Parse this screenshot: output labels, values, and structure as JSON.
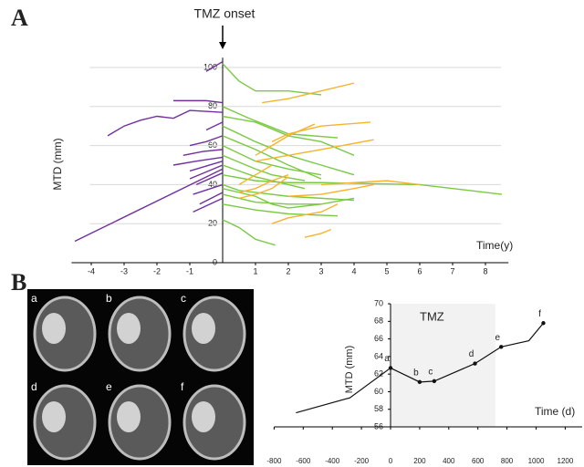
{
  "chart_data": [
    {
      "type": "line",
      "panel_label": "A",
      "annotation": "TMZ onset",
      "y_label": "MTD (mm)",
      "x_label": "Time(y)",
      "xlim": [
        -4.6,
        8.7
      ],
      "ylim": [
        0,
        105
      ],
      "xticks": [
        -4,
        -3,
        -2,
        -1,
        1,
        2,
        3,
        4,
        5,
        6,
        7,
        8
      ],
      "yticks": [
        0,
        20,
        40,
        60,
        80,
        100
      ],
      "grid": true,
      "series": [
        {
          "color": "#7030a0",
          "x": [
            -4.5,
            0
          ],
          "values": [
            11,
            48
          ]
        },
        {
          "color": "#7030a0",
          "x": [
            -3.5,
            -3,
            -2.5,
            -2,
            -1.5,
            -1,
            0
          ],
          "values": [
            65,
            70,
            73,
            75,
            74,
            78,
            77
          ]
        },
        {
          "color": "#7030a0",
          "x": [
            -1.5,
            -0.5,
            0
          ],
          "values": [
            83,
            83,
            82
          ]
        },
        {
          "color": "#7030a0",
          "x": [
            -0.5,
            0
          ],
          "values": [
            98,
            103
          ]
        },
        {
          "color": "#7030a0",
          "x": [
            -1,
            -0.5,
            0
          ],
          "values": [
            60,
            62,
            65
          ]
        },
        {
          "color": "#7030a0",
          "x": [
            -1.2,
            -0.6,
            0
          ],
          "values": [
            55,
            57,
            58
          ]
        },
        {
          "color": "#7030a0",
          "x": [
            -1,
            0
          ],
          "values": [
            47,
            52
          ]
        },
        {
          "color": "#7030a0",
          "x": [
            -0.8,
            0
          ],
          "values": [
            40,
            46
          ]
        },
        {
          "color": "#7030a0",
          "x": [
            -1,
            0
          ],
          "values": [
            43,
            50
          ]
        },
        {
          "color": "#7030a0",
          "x": [
            -0.9,
            0
          ],
          "values": [
            35,
            40
          ]
        },
        {
          "color": "#7030a0",
          "x": [
            -0.7,
            0
          ],
          "values": [
            30,
            36
          ]
        },
        {
          "color": "#7030a0",
          "x": [
            -0.9,
            0
          ],
          "values": [
            26,
            33
          ]
        },
        {
          "color": "#7030a0",
          "x": [
            -0.5,
            0
          ],
          "values": [
            68,
            72
          ]
        },
        {
          "color": "#7030a0",
          "x": [
            -1.5,
            -0.8,
            0
          ],
          "values": [
            50,
            52,
            54
          ]
        },
        {
          "color": "#7ac943",
          "x": [
            0,
            0.5,
            1,
            2,
            3
          ],
          "values": [
            102,
            93,
            88,
            88,
            86
          ]
        },
        {
          "color": "#7ac943",
          "x": [
            0,
            1,
            2,
            3,
            4
          ],
          "values": [
            75,
            72,
            65,
            62,
            55
          ]
        },
        {
          "color": "#7ac943",
          "x": [
            0,
            0.8,
            2,
            3.5
          ],
          "values": [
            80,
            74,
            66,
            64
          ]
        },
        {
          "color": "#7ac943",
          "x": [
            0,
            1,
            2,
            3,
            4
          ],
          "values": [
            70,
            62,
            55,
            50,
            45
          ]
        },
        {
          "color": "#7ac943",
          "x": [
            0,
            1,
            2,
            3,
            6,
            8.5
          ],
          "values": [
            45,
            42,
            41,
            41,
            40,
            35
          ]
        },
        {
          "color": "#7ac943",
          "x": [
            0,
            1,
            2,
            3
          ],
          "values": [
            60,
            52,
            48,
            45
          ]
        },
        {
          "color": "#7ac943",
          "x": [
            0,
            1,
            1.5,
            2.5
          ],
          "values": [
            55,
            48,
            45,
            42
          ]
        },
        {
          "color": "#7ac943",
          "x": [
            0,
            0.5,
            1,
            2,
            3,
            4
          ],
          "values": [
            40,
            37,
            36,
            34,
            33,
            32
          ]
        },
        {
          "color": "#7ac943",
          "x": [
            0,
            1,
            2,
            3
          ],
          "values": [
            35,
            31,
            30,
            30
          ]
        },
        {
          "color": "#7ac943",
          "x": [
            0,
            1,
            2,
            3.5
          ],
          "values": [
            30,
            27,
            25,
            24
          ]
        },
        {
          "color": "#7ac943",
          "x": [
            0,
            0.5,
            1,
            1.6
          ],
          "values": [
            22,
            18,
            12,
            9
          ]
        },
        {
          "color": "#7ac943",
          "x": [
            0,
            1,
            2,
            3
          ],
          "values": [
            65,
            58,
            50,
            43
          ]
        },
        {
          "color": "#7ac943",
          "x": [
            0,
            1,
            2,
            2.5
          ],
          "values": [
            50,
            44,
            40,
            38
          ]
        },
        {
          "color": "#7ac943",
          "x": [
            0,
            1,
            1.5,
            2,
            3,
            4
          ],
          "values": [
            38,
            34,
            30,
            28,
            30,
            33
          ]
        },
        {
          "color": "#f7b32b",
          "x": [
            1.2,
            2,
            3,
            4
          ],
          "values": [
            82,
            84,
            88,
            92
          ]
        },
        {
          "color": "#f7b32b",
          "x": [
            0.5,
            1,
            1.5,
            2
          ],
          "values": [
            33,
            35,
            38,
            44
          ]
        },
        {
          "color": "#f7b32b",
          "x": [
            1,
            2,
            3,
            4.6
          ],
          "values": [
            52,
            55,
            58,
            63
          ]
        },
        {
          "color": "#f7b32b",
          "x": [
            1.5,
            2,
            3,
            4.5
          ],
          "values": [
            62,
            66,
            70,
            72
          ]
        },
        {
          "color": "#f7b32b",
          "x": [
            2,
            3,
            4,
            4.6
          ],
          "values": [
            34,
            35,
            38,
            40
          ]
        },
        {
          "color": "#f7b32b",
          "x": [
            1.5,
            2,
            3,
            3.5
          ],
          "values": [
            20,
            23,
            26,
            30
          ]
        },
        {
          "color": "#f7b32b",
          "x": [
            2.5,
            3,
            3.3
          ],
          "values": [
            13,
            15,
            17
          ]
        },
        {
          "color": "#f7b32b",
          "x": [
            0.5,
            1,
            1.5,
            2
          ],
          "values": [
            36,
            38,
            42,
            45
          ]
        },
        {
          "color": "#f7b32b",
          "x": [
            3,
            4,
            5,
            6
          ],
          "values": [
            40,
            41,
            42,
            40
          ]
        },
        {
          "color": "#f7b32b",
          "x": [
            1,
            1.5,
            2,
            2.8
          ],
          "values": [
            55,
            60,
            65,
            71
          ]
        },
        {
          "color": "#f7b32b",
          "x": [
            0.5,
            1,
            1.5
          ],
          "values": [
            40,
            45,
            50
          ]
        }
      ]
    },
    {
      "type": "line",
      "annotation": "TMZ",
      "y_label": "MTD (mm)",
      "x_label": "Time (d)",
      "xlim": [
        -800,
        1200
      ],
      "ylim": [
        56,
        70
      ],
      "xticks": [
        -800,
        -600,
        -400,
        -200,
        0,
        200,
        400,
        600,
        800,
        1000,
        1200
      ],
      "yticks": [
        56,
        58,
        60,
        62,
        64,
        66,
        68,
        70
      ],
      "shade": {
        "xlim": [
          0,
          720
        ],
        "color": "#f2f2f2"
      },
      "color": "#111111",
      "x": [
        -650,
        -280,
        0,
        200,
        300,
        580,
        760,
        950,
        1050
      ],
      "values": [
        57.6,
        59.3,
        62.7,
        61.1,
        61.2,
        63.2,
        65.1,
        65.8,
        67.8
      ],
      "point_labels": [
        null,
        null,
        "a",
        "b",
        "c",
        "d",
        "e",
        null,
        "f"
      ]
    }
  ],
  "images": {
    "panel_label": "B",
    "labels": [
      "a",
      "b",
      "c",
      "d",
      "e",
      "f"
    ]
  }
}
